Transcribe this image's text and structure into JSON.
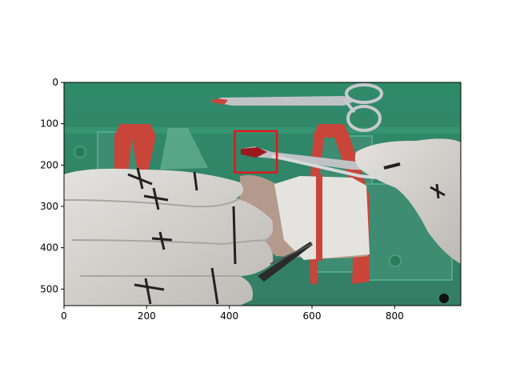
{
  "figure": {
    "image_extent": {
      "x": [
        0,
        960
      ],
      "y": [
        0,
        540
      ]
    },
    "x_ticks": [
      0,
      200,
      400,
      600,
      800
    ],
    "y_ticks": [
      0,
      100,
      200,
      300,
      400,
      500
    ],
    "detection_box": {
      "label_visible": false,
      "color": "#e0181c",
      "x0": 413,
      "y0": 118,
      "x1": 515,
      "y1": 218
    },
    "scene": {
      "drape_color": "#2f8a6a",
      "glove_color": "#d9d6d0",
      "band_color": "#c9453a",
      "instrument_color": "#bfc3c6"
    }
  }
}
